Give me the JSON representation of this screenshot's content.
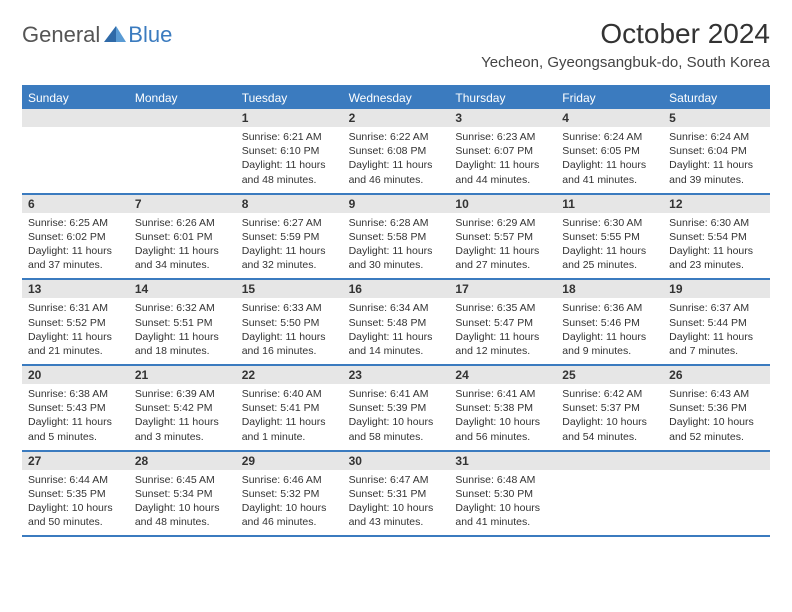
{
  "logo": {
    "text_general": "General",
    "text_blue": "Blue"
  },
  "title": "October 2024",
  "location": "Yecheon, Gyeongsangbuk-do, South Korea",
  "colors": {
    "accent": "#3b7bbf",
    "header_text": "#ffffff",
    "daynum_bg": "#e6e6e6",
    "text": "#333333",
    "background": "#ffffff"
  },
  "day_names": [
    "Sunday",
    "Monday",
    "Tuesday",
    "Wednesday",
    "Thursday",
    "Friday",
    "Saturday"
  ],
  "weeks": [
    [
      {
        "day": "",
        "sunrise": "",
        "sunset": "",
        "daylight": ""
      },
      {
        "day": "",
        "sunrise": "",
        "sunset": "",
        "daylight": ""
      },
      {
        "day": "1",
        "sunrise": "Sunrise: 6:21 AM",
        "sunset": "Sunset: 6:10 PM",
        "daylight": "Daylight: 11 hours and 48 minutes."
      },
      {
        "day": "2",
        "sunrise": "Sunrise: 6:22 AM",
        "sunset": "Sunset: 6:08 PM",
        "daylight": "Daylight: 11 hours and 46 minutes."
      },
      {
        "day": "3",
        "sunrise": "Sunrise: 6:23 AM",
        "sunset": "Sunset: 6:07 PM",
        "daylight": "Daylight: 11 hours and 44 minutes."
      },
      {
        "day": "4",
        "sunrise": "Sunrise: 6:24 AM",
        "sunset": "Sunset: 6:05 PM",
        "daylight": "Daylight: 11 hours and 41 minutes."
      },
      {
        "day": "5",
        "sunrise": "Sunrise: 6:24 AM",
        "sunset": "Sunset: 6:04 PM",
        "daylight": "Daylight: 11 hours and 39 minutes."
      }
    ],
    [
      {
        "day": "6",
        "sunrise": "Sunrise: 6:25 AM",
        "sunset": "Sunset: 6:02 PM",
        "daylight": "Daylight: 11 hours and 37 minutes."
      },
      {
        "day": "7",
        "sunrise": "Sunrise: 6:26 AM",
        "sunset": "Sunset: 6:01 PM",
        "daylight": "Daylight: 11 hours and 34 minutes."
      },
      {
        "day": "8",
        "sunrise": "Sunrise: 6:27 AM",
        "sunset": "Sunset: 5:59 PM",
        "daylight": "Daylight: 11 hours and 32 minutes."
      },
      {
        "day": "9",
        "sunrise": "Sunrise: 6:28 AM",
        "sunset": "Sunset: 5:58 PM",
        "daylight": "Daylight: 11 hours and 30 minutes."
      },
      {
        "day": "10",
        "sunrise": "Sunrise: 6:29 AM",
        "sunset": "Sunset: 5:57 PM",
        "daylight": "Daylight: 11 hours and 27 minutes."
      },
      {
        "day": "11",
        "sunrise": "Sunrise: 6:30 AM",
        "sunset": "Sunset: 5:55 PM",
        "daylight": "Daylight: 11 hours and 25 minutes."
      },
      {
        "day": "12",
        "sunrise": "Sunrise: 6:30 AM",
        "sunset": "Sunset: 5:54 PM",
        "daylight": "Daylight: 11 hours and 23 minutes."
      }
    ],
    [
      {
        "day": "13",
        "sunrise": "Sunrise: 6:31 AM",
        "sunset": "Sunset: 5:52 PM",
        "daylight": "Daylight: 11 hours and 21 minutes."
      },
      {
        "day": "14",
        "sunrise": "Sunrise: 6:32 AM",
        "sunset": "Sunset: 5:51 PM",
        "daylight": "Daylight: 11 hours and 18 minutes."
      },
      {
        "day": "15",
        "sunrise": "Sunrise: 6:33 AM",
        "sunset": "Sunset: 5:50 PM",
        "daylight": "Daylight: 11 hours and 16 minutes."
      },
      {
        "day": "16",
        "sunrise": "Sunrise: 6:34 AM",
        "sunset": "Sunset: 5:48 PM",
        "daylight": "Daylight: 11 hours and 14 minutes."
      },
      {
        "day": "17",
        "sunrise": "Sunrise: 6:35 AM",
        "sunset": "Sunset: 5:47 PM",
        "daylight": "Daylight: 11 hours and 12 minutes."
      },
      {
        "day": "18",
        "sunrise": "Sunrise: 6:36 AM",
        "sunset": "Sunset: 5:46 PM",
        "daylight": "Daylight: 11 hours and 9 minutes."
      },
      {
        "day": "19",
        "sunrise": "Sunrise: 6:37 AM",
        "sunset": "Sunset: 5:44 PM",
        "daylight": "Daylight: 11 hours and 7 minutes."
      }
    ],
    [
      {
        "day": "20",
        "sunrise": "Sunrise: 6:38 AM",
        "sunset": "Sunset: 5:43 PM",
        "daylight": "Daylight: 11 hours and 5 minutes."
      },
      {
        "day": "21",
        "sunrise": "Sunrise: 6:39 AM",
        "sunset": "Sunset: 5:42 PM",
        "daylight": "Daylight: 11 hours and 3 minutes."
      },
      {
        "day": "22",
        "sunrise": "Sunrise: 6:40 AM",
        "sunset": "Sunset: 5:41 PM",
        "daylight": "Daylight: 11 hours and 1 minute."
      },
      {
        "day": "23",
        "sunrise": "Sunrise: 6:41 AM",
        "sunset": "Sunset: 5:39 PM",
        "daylight": "Daylight: 10 hours and 58 minutes."
      },
      {
        "day": "24",
        "sunrise": "Sunrise: 6:41 AM",
        "sunset": "Sunset: 5:38 PM",
        "daylight": "Daylight: 10 hours and 56 minutes."
      },
      {
        "day": "25",
        "sunrise": "Sunrise: 6:42 AM",
        "sunset": "Sunset: 5:37 PM",
        "daylight": "Daylight: 10 hours and 54 minutes."
      },
      {
        "day": "26",
        "sunrise": "Sunrise: 6:43 AM",
        "sunset": "Sunset: 5:36 PM",
        "daylight": "Daylight: 10 hours and 52 minutes."
      }
    ],
    [
      {
        "day": "27",
        "sunrise": "Sunrise: 6:44 AM",
        "sunset": "Sunset: 5:35 PM",
        "daylight": "Daylight: 10 hours and 50 minutes."
      },
      {
        "day": "28",
        "sunrise": "Sunrise: 6:45 AM",
        "sunset": "Sunset: 5:34 PM",
        "daylight": "Daylight: 10 hours and 48 minutes."
      },
      {
        "day": "29",
        "sunrise": "Sunrise: 6:46 AM",
        "sunset": "Sunset: 5:32 PM",
        "daylight": "Daylight: 10 hours and 46 minutes."
      },
      {
        "day": "30",
        "sunrise": "Sunrise: 6:47 AM",
        "sunset": "Sunset: 5:31 PM",
        "daylight": "Daylight: 10 hours and 43 minutes."
      },
      {
        "day": "31",
        "sunrise": "Sunrise: 6:48 AM",
        "sunset": "Sunset: 5:30 PM",
        "daylight": "Daylight: 10 hours and 41 minutes."
      },
      {
        "day": "",
        "sunrise": "",
        "sunset": "",
        "daylight": ""
      },
      {
        "day": "",
        "sunrise": "",
        "sunset": "",
        "daylight": ""
      }
    ]
  ]
}
